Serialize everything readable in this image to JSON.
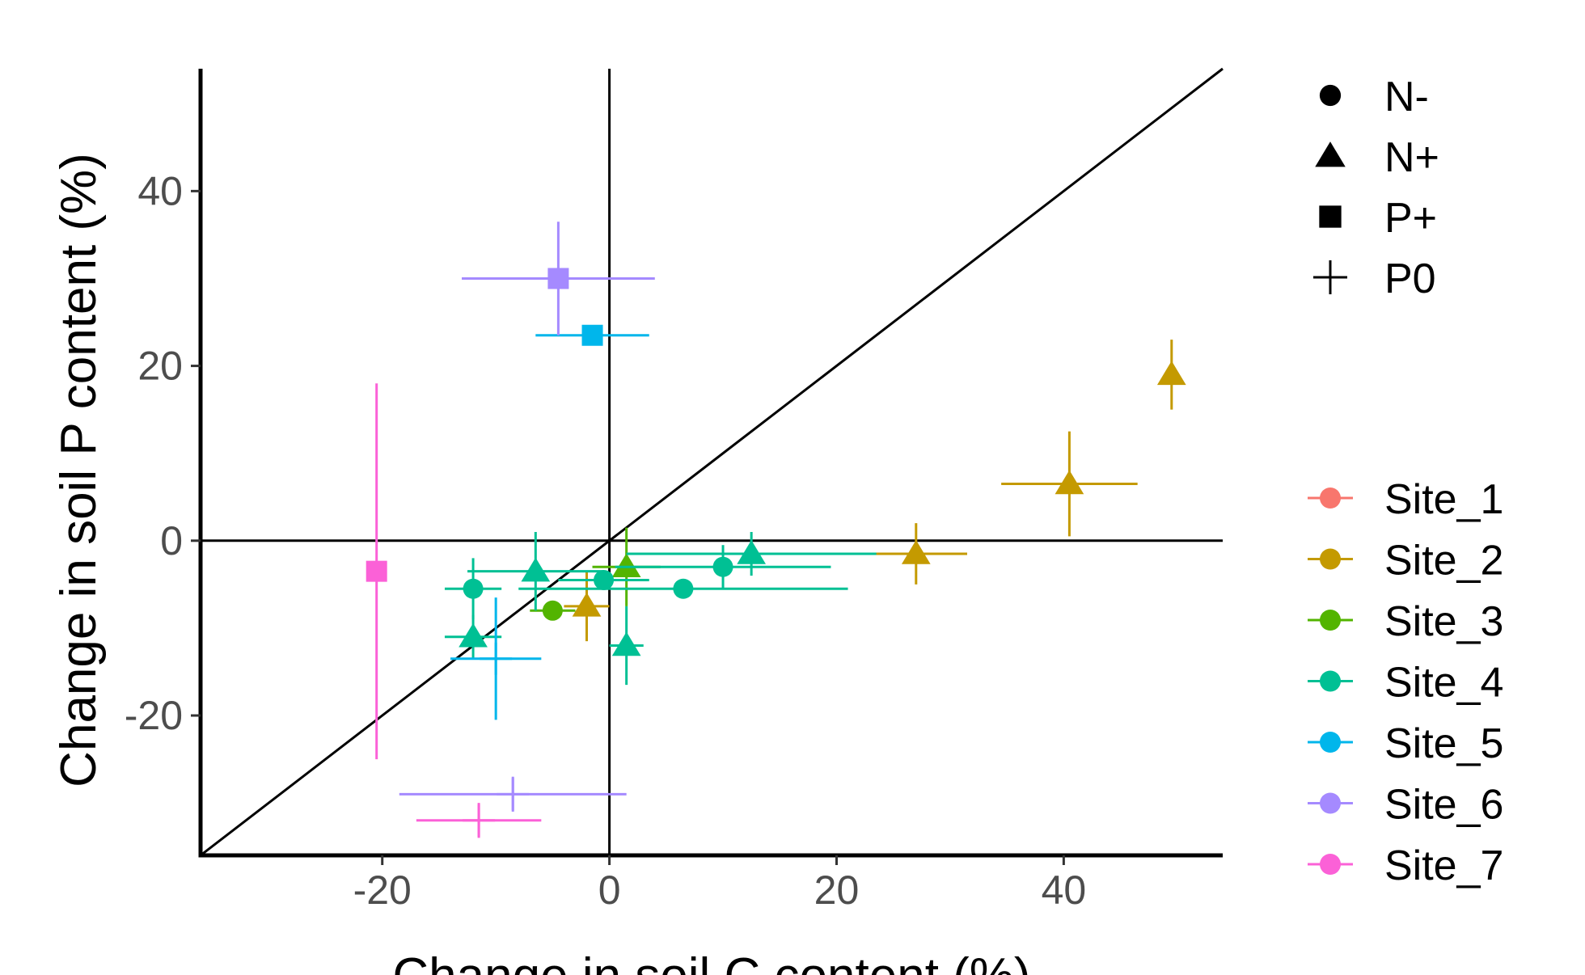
{
  "chart_data": {
    "type": "scatter",
    "title": "",
    "xlabel": "Change in soil C content (%)",
    "ylabel": "Change in soil P content (%)",
    "xlim": [
      -36,
      54
    ],
    "ylim": [
      -36,
      54
    ],
    "x_ticks": [
      -20,
      0,
      20,
      40
    ],
    "y_ticks": [
      -20,
      0,
      20,
      40
    ],
    "x_tick_labels": [
      "-20",
      "0",
      "20",
      "40"
    ],
    "y_tick_labels": [
      "-20",
      "0",
      "20",
      "40"
    ],
    "reference_lines": [
      "x = 0",
      "y = 0",
      "y = x"
    ],
    "grid": false,
    "legend_placement": "right",
    "shape_legend": [
      {
        "label": "N-",
        "shape": "circle"
      },
      {
        "label": "N+",
        "shape": "triangle"
      },
      {
        "label": "P+",
        "shape": "square"
      },
      {
        "label": "P0",
        "shape": "plus"
      }
    ],
    "color_legend": [
      {
        "label": "Site_1",
        "color": "#F8766D"
      },
      {
        "label": "Site_2",
        "color": "#C49A00"
      },
      {
        "label": "Site_3",
        "color": "#53B400"
      },
      {
        "label": "Site_4",
        "color": "#00C094"
      },
      {
        "label": "Site_5",
        "color": "#00B6EB"
      },
      {
        "label": "Site_6",
        "color": "#A58AFF"
      },
      {
        "label": "Site_7",
        "color": "#FB61D7"
      }
    ],
    "points": [
      {
        "site": "Site_2",
        "treatment": "N+",
        "x": 49.5,
        "y": 19,
        "x_err": 0,
        "y_err": 4
      },
      {
        "site": "Site_2",
        "treatment": "N+",
        "x": 40.5,
        "y": 6.5,
        "x_err": 6,
        "y_err": 6
      },
      {
        "site": "Site_2",
        "treatment": "N+",
        "x": 27,
        "y": -1.5,
        "x_err": 4.5,
        "y_err": 3.5
      },
      {
        "site": "Site_2",
        "treatment": "N+",
        "x": -2,
        "y": -7.5,
        "x_err": 2,
        "y_err": 4
      },
      {
        "site": "Site_3",
        "treatment": "N-",
        "x": -5,
        "y": -8,
        "x_err": 2,
        "y_err": 0
      },
      {
        "site": "Site_3",
        "treatment": "N+",
        "x": 1.5,
        "y": -3,
        "x_err": 3,
        "y_err": 4.5
      },
      {
        "site": "Site_4",
        "treatment": "N-",
        "x": -12,
        "y": -5.5,
        "x_err": 2.5,
        "y_err": 3.5
      },
      {
        "site": "Site_4",
        "treatment": "N-",
        "x": -0.5,
        "y": -4.5,
        "x_err": 4,
        "y_err": 0
      },
      {
        "site": "Site_4",
        "treatment": "N-",
        "x": 6.5,
        "y": -5.5,
        "x_err": 14.5,
        "y_err": 0
      },
      {
        "site": "Site_4",
        "treatment": "N-",
        "x": 10,
        "y": -3,
        "x_err": 9.5,
        "y_err": 2.5
      },
      {
        "site": "Site_4",
        "treatment": "N+",
        "x": -12,
        "y": -11,
        "x_err": 2.5,
        "y_err": 2.5
      },
      {
        "site": "Site_4",
        "treatment": "N+",
        "x": -6.5,
        "y": -3.5,
        "x_err": 6,
        "y_err": 4.5
      },
      {
        "site": "Site_4",
        "treatment": "N+",
        "x": 1.5,
        "y": -12,
        "x_err": 1.5,
        "y_err": 4.5
      },
      {
        "site": "Site_4",
        "treatment": "N+",
        "x": 12.5,
        "y": -1.5,
        "x_err": 11,
        "y_err": 2.5
      },
      {
        "site": "Site_5",
        "treatment": "P+",
        "x": -1.5,
        "y": 23.5,
        "x_err": 5,
        "y_err": 0
      },
      {
        "site": "Site_5",
        "treatment": "P0",
        "x": -10,
        "y": -13.5,
        "x_err": 4,
        "y_err": 7
      },
      {
        "site": "Site_6",
        "treatment": "P+",
        "x": -4.5,
        "y": 30,
        "x_err": 8.5,
        "y_err": 6.5
      },
      {
        "site": "Site_6",
        "treatment": "P0",
        "x": -8.5,
        "y": -29,
        "x_err": 10,
        "y_err": 2
      },
      {
        "site": "Site_7",
        "treatment": "P+",
        "x": -20.5,
        "y": -3.5,
        "x_err": 0,
        "y_err": 21.5
      },
      {
        "site": "Site_7",
        "treatment": "P0",
        "x": -11.5,
        "y": -32,
        "x_err": 5.5,
        "y_err": 2
      }
    ]
  }
}
